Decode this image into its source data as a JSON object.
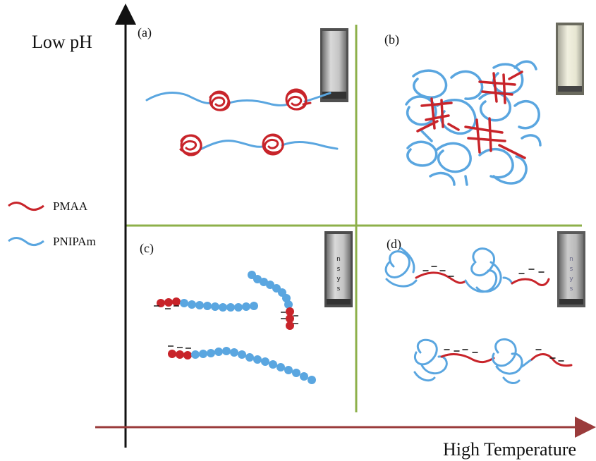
{
  "axes": {
    "y_label": "Low pH",
    "x_label": "High Temperature"
  },
  "legend": [
    {
      "label": "PMAA",
      "color": "#c8242a"
    },
    {
      "label": "PNIPAm",
      "color": "#5aa6e0"
    }
  ],
  "panels": [
    {
      "id": "a",
      "label": "(a)"
    },
    {
      "id": "b",
      "label": "(b)"
    },
    {
      "id": "c",
      "label": "(c)"
    },
    {
      "id": "d",
      "label": "(d)"
    }
  ],
  "colors": {
    "pmaa": "#c8242a",
    "pnipam": "#5aa6e0",
    "divider": "#8db04a",
    "y_axis": "#111111",
    "x_axis": "#9a3b3b"
  },
  "icons": {
    "vial": "sample-vial-photo",
    "charge": "negative-charge-mark"
  }
}
